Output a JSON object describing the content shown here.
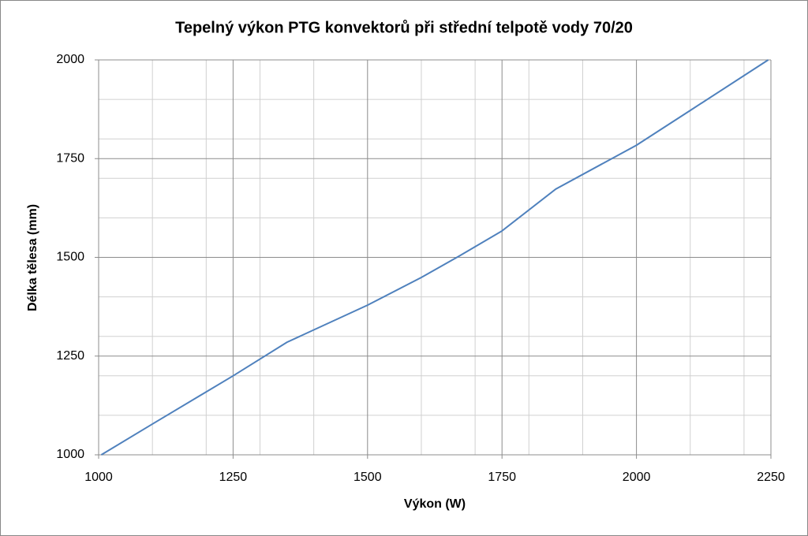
{
  "chart_data": {
    "type": "line",
    "title": "Tepelný výkon PTG konvektorů při střední telpotě vody 70/20",
    "x_label": "Výkon (W)",
    "y_label": "Délka tělesa (mm)",
    "x": [
      1005,
      1100,
      1250,
      1350,
      1500,
      1600,
      1670,
      1750,
      1850,
      2000,
      2100,
      2245
    ],
    "series": [
      {
        "name": "PTG",
        "color": "#4f81bd",
        "values": [
          1000,
          1078,
          1200,
          1285,
          1379,
          1449,
          1503,
          1567,
          1673,
          1784,
          1872,
          2000
        ]
      }
    ],
    "xlim": [
      1000,
      2250
    ],
    "xticks": [
      1000,
      1250,
      1500,
      1750,
      2000,
      2250
    ],
    "ylim": [
      1000,
      2000
    ],
    "yticks": [
      1000,
      1250,
      1500,
      1750,
      2000
    ],
    "x_minor_grid": [
      1100,
      1200,
      1300,
      1400,
      1600,
      1700,
      1800,
      1900,
      2100,
      2200
    ],
    "y_minor_grid": [
      1100,
      1200,
      1300,
      1400,
      1600,
      1700,
      1800,
      1900
    ],
    "grid": true
  }
}
